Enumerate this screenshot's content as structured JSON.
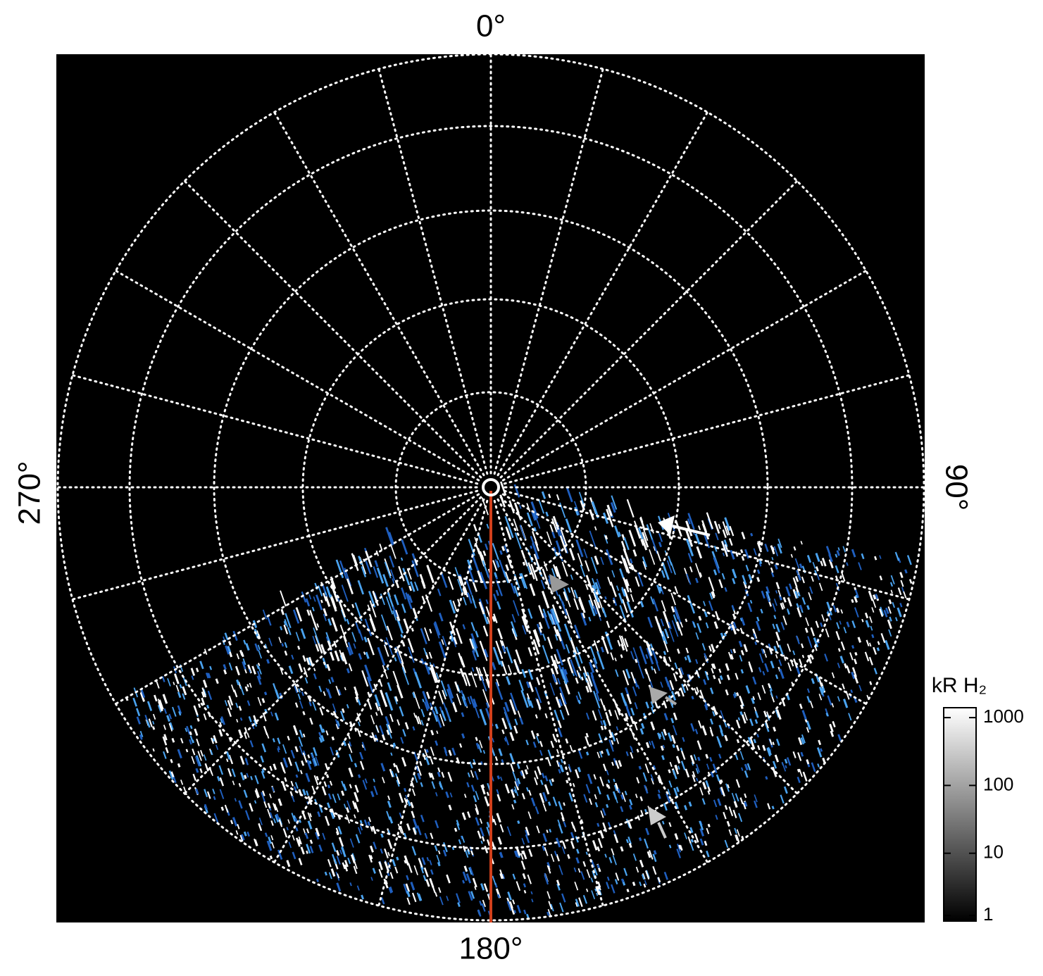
{
  "chart_data": {
    "type": "polar-map",
    "angle_labels": [
      {
        "value": 0,
        "label": "0°"
      },
      {
        "value": 90,
        "label": "90°"
      },
      {
        "value": 180,
        "label": "180°"
      },
      {
        "value": 270,
        "label": "270°"
      }
    ],
    "colorbar": {
      "title": "kR H₂",
      "log": true,
      "clim": [
        1,
        1400
      ],
      "ticks": [
        1,
        10,
        100,
        1000
      ]
    }
  }
}
